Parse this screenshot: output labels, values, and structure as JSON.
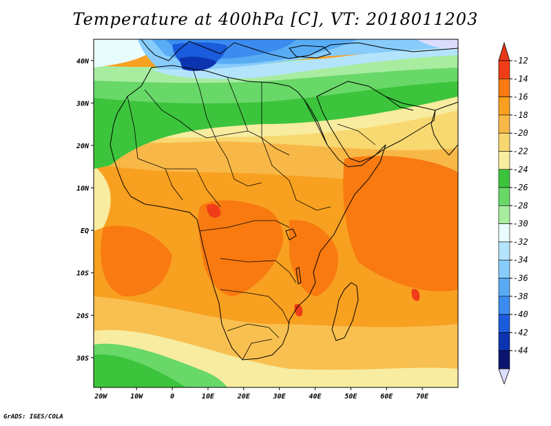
{
  "title": "Temperature at 400hPa [C], VT: 2018011203",
  "footer": "GrADS: IGES/COLA",
  "map": {
    "projection": "latlon",
    "lon_range": [
      -22,
      80
    ],
    "lat_range": [
      -37,
      45
    ],
    "x_ticks": [
      {
        "value": -20,
        "label": "20W"
      },
      {
        "value": -10,
        "label": "10W"
      },
      {
        "value": 0,
        "label": "0"
      },
      {
        "value": 10,
        "label": "10E"
      },
      {
        "value": 20,
        "label": "20E"
      },
      {
        "value": 30,
        "label": "30E"
      },
      {
        "value": 40,
        "label": "40E"
      },
      {
        "value": 50,
        "label": "50E"
      },
      {
        "value": 60,
        "label": "60E"
      },
      {
        "value": 70,
        "label": "70E"
      }
    ],
    "y_ticks": [
      {
        "value": 40,
        "label": "40N"
      },
      {
        "value": 30,
        "label": "30N"
      },
      {
        "value": 20,
        "label": "20N"
      },
      {
        "value": 10,
        "label": "10N"
      },
      {
        "value": 0,
        "label": "EQ"
      },
      {
        "value": -10,
        "label": "10S"
      },
      {
        "value": -20,
        "label": "20S"
      },
      {
        "value": -30,
        "label": "30S"
      }
    ]
  },
  "colorbar": {
    "labels": [
      "-12",
      "-14",
      "-16",
      "-18",
      "-20",
      "-22",
      "-24",
      "-26",
      "-28",
      "-30",
      "-32",
      "-34",
      "-36",
      "-38",
      "-40",
      "-42",
      "-44"
    ],
    "colors": [
      "#f03c18",
      "#f87a10",
      "#f8a020",
      "#f8b848",
      "#f8d870",
      "#f8eca0",
      "#3cc43c",
      "#68d868",
      "#a8eca0",
      "#e8fcfc",
      "#b4e4fc",
      "#88ccfc",
      "#58acf4",
      "#3c8cf0",
      "#1a5cdc",
      "#0c34b0",
      "#0c1470"
    ],
    "cap_top_color": "#e8381a",
    "cap_bottom_color": "#dcdcff"
  }
}
